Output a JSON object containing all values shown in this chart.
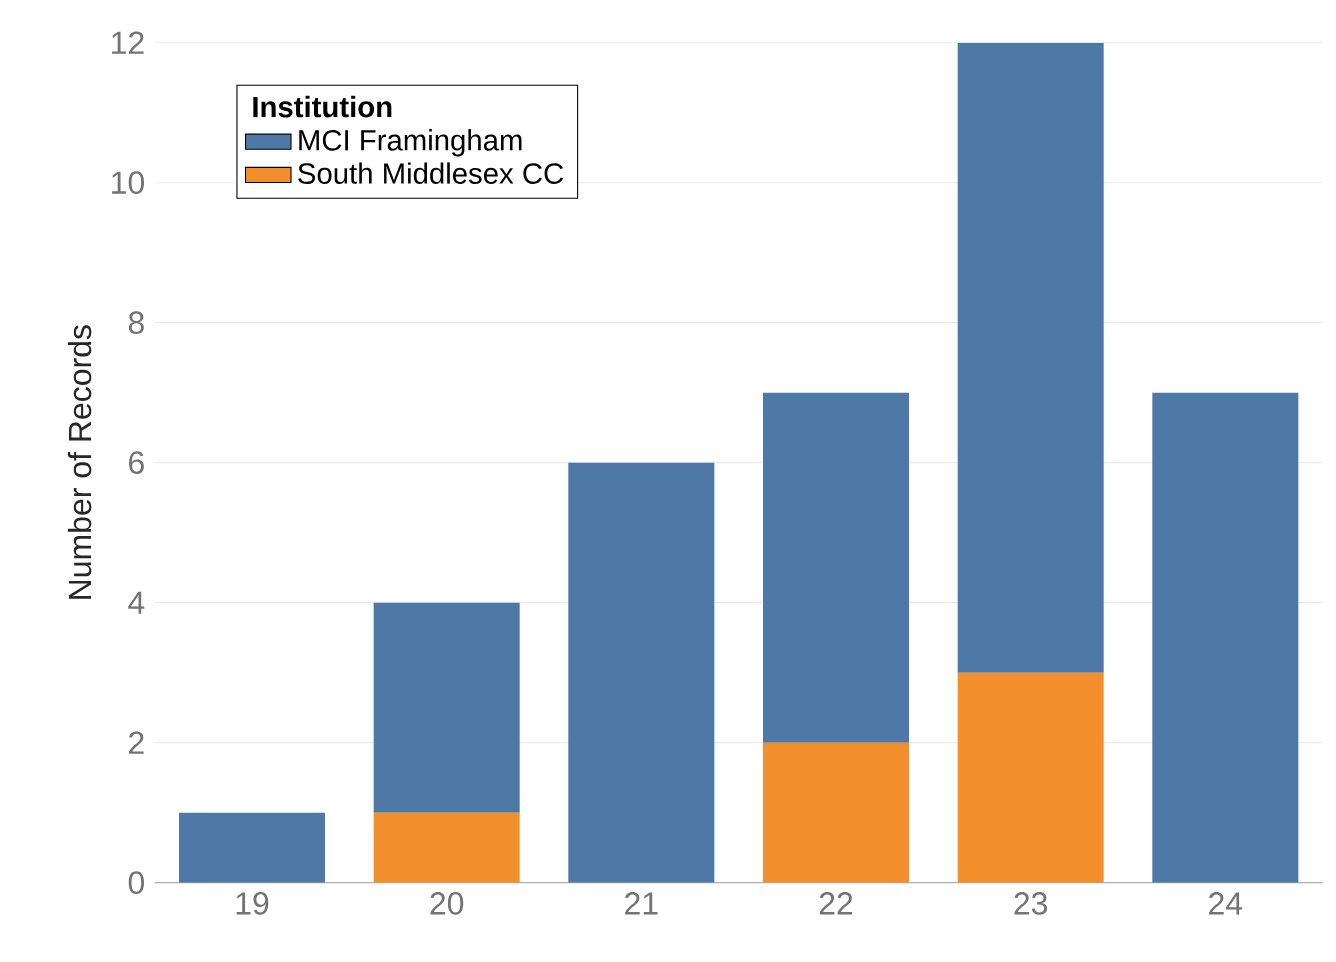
{
  "chart_data": {
    "type": "bar",
    "stacked": true,
    "ylabel": "Number of Records",
    "legend_title": "Institution",
    "categories": [
      "19",
      "20",
      "21",
      "22",
      "23",
      "24"
    ],
    "series": [
      {
        "name": "South Middlesex CC",
        "color": "#f28e2b",
        "values": [
          0,
          1,
          0,
          2,
          3,
          0
        ]
      },
      {
        "name": "MCI Framingham",
        "color": "#4e79a7",
        "values": [
          1,
          3,
          6,
          5,
          9,
          7
        ]
      }
    ],
    "ylim": [
      0,
      12
    ],
    "yticks": [
      0,
      2,
      4,
      6,
      8,
      10,
      12
    ],
    "grid": "y",
    "legend": "top left"
  }
}
